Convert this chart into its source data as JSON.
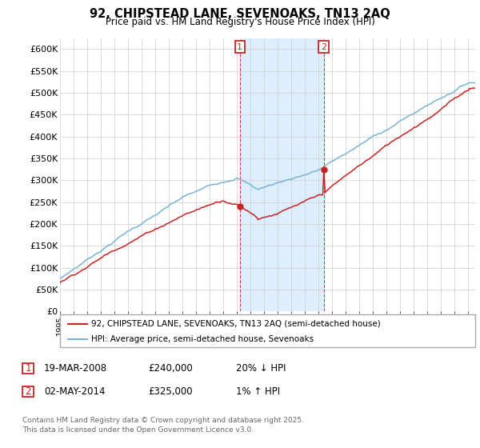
{
  "title": "92, CHIPSTEAD LANE, SEVENOAKS, TN13 2AQ",
  "subtitle": "Price paid vs. HM Land Registry's House Price Index (HPI)",
  "ylim": [
    0,
    625000
  ],
  "yticks": [
    0,
    50000,
    100000,
    150000,
    200000,
    250000,
    300000,
    350000,
    400000,
    450000,
    500000,
    550000,
    600000
  ],
  "ytick_labels": [
    "£0",
    "£50K",
    "£100K",
    "£150K",
    "£200K",
    "£250K",
    "£300K",
    "£350K",
    "£400K",
    "£450K",
    "£500K",
    "£550K",
    "£600K"
  ],
  "xlim_start": 1995,
  "xlim_end": 2025.5,
  "hpi_color": "#7ab3d4",
  "price_color": "#cc2222",
  "sale1_x": 2008.21,
  "sale1_price": 240000,
  "sale2_x": 2014.37,
  "sale2_price": 325000,
  "shade_color": "#ddeeff",
  "vline_color": "#cc2222",
  "legend_line1": "92, CHIPSTEAD LANE, SEVENOAKS, TN13 2AQ (semi-detached house)",
  "legend_line2": "HPI: Average price, semi-detached house, Sevenoaks",
  "footer": "Contains HM Land Registry data © Crown copyright and database right 2025.\nThis data is licensed under the Open Government Licence v3.0.",
  "grid_color": "#cccccc",
  "background_color": "#ffffff"
}
